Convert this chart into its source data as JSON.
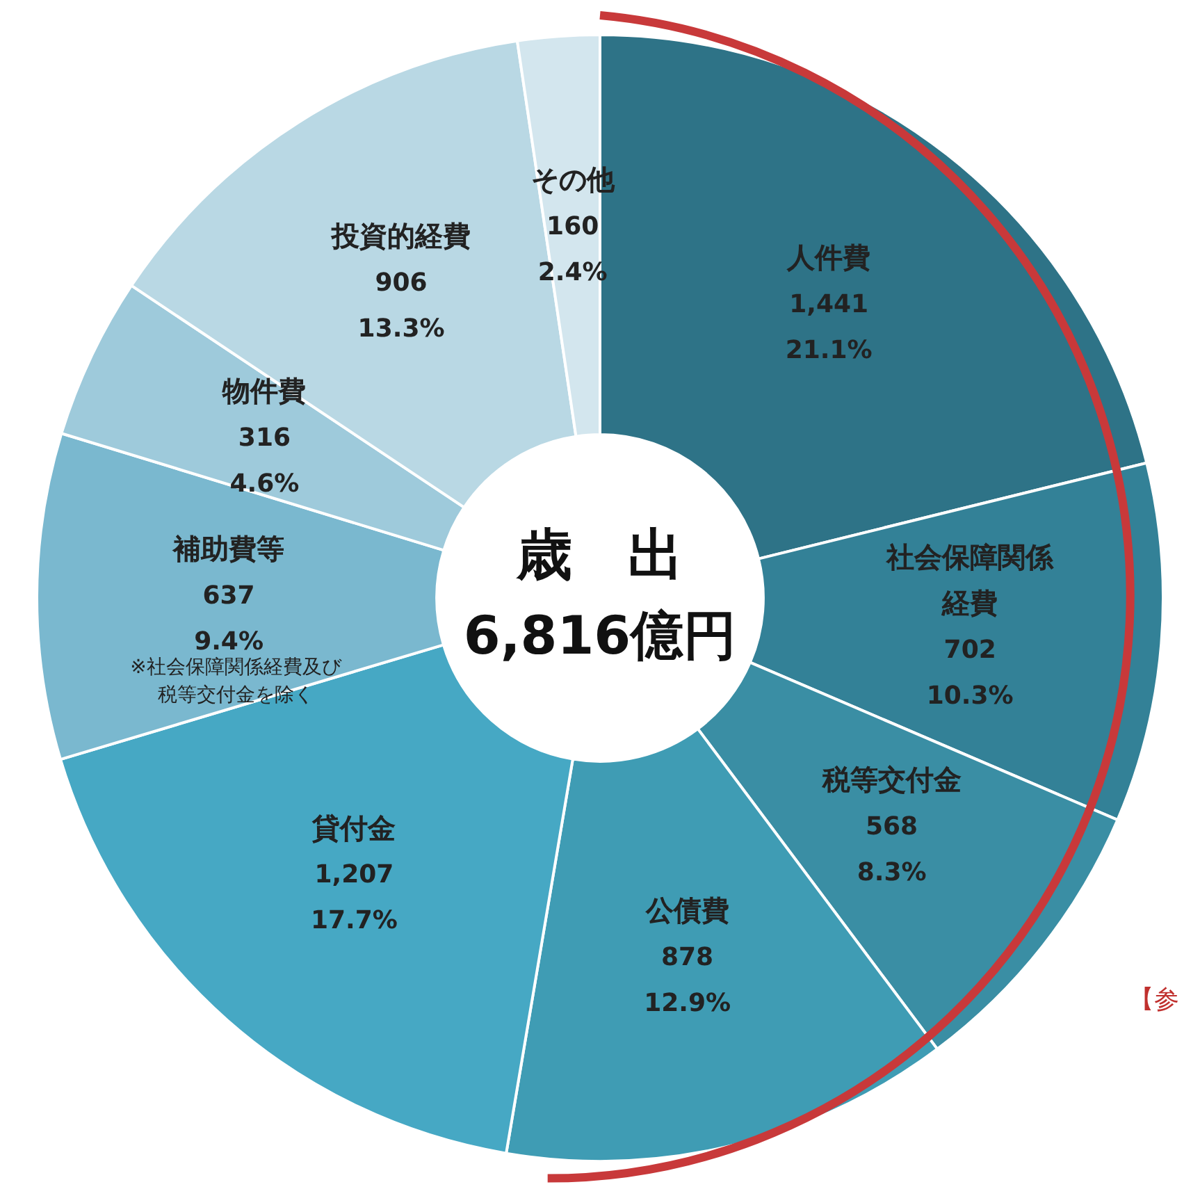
{
  "chart_data": {
    "type": "donut",
    "title": "歳　出",
    "subtitle": "6,816億円",
    "categories": [
      "人件費",
      "社会保障関係経費",
      "税等交付金",
      "公債費",
      "貸付金",
      "補助費等",
      "物件費",
      "投資的経費",
      "その他"
    ],
    "values": [
      1441,
      702,
      568,
      878,
      1207,
      637,
      316,
      906,
      160
    ],
    "colors": [
      "#2e7387",
      "#338197",
      "#3a8ea4",
      "#3f9cb4",
      "#46a8c4",
      "#7ab8cf",
      "#9ecadb",
      "#b9d8e4",
      "#d3e6ee"
    ],
    "value_labels": [
      "1,441\n21.1%",
      "702\n10.3%",
      "568\n8.3%",
      "878\n12.9%",
      "1,207\n17.7%",
      "637\n9.4%",
      "316\n4.6%",
      "906\n13.3%",
      "160\n2.4%"
    ],
    "annotations": [
      {
        "text": "※社会保障関係経費及び税等交付金を除く",
        "x": "補助費等"
      },
      "【参"
    ],
    "legend": false
  }
}
